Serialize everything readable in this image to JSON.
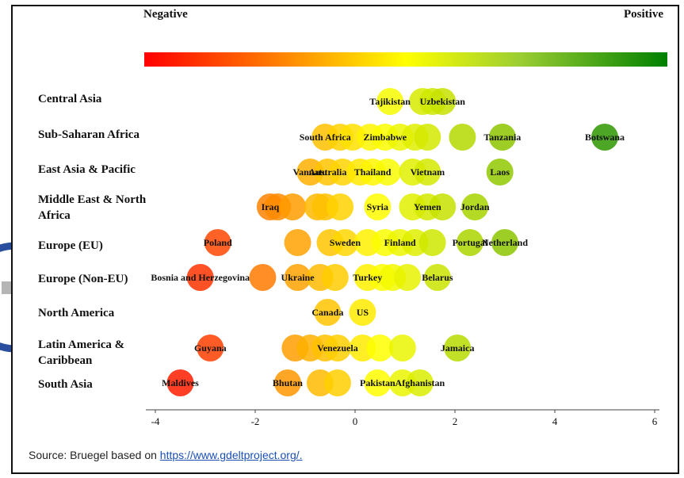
{
  "legend": {
    "negative": "Negative",
    "positive": "Positive"
  },
  "source": {
    "prefix": "Source: Bruegel based on ",
    "link": "https://www.gdeltproject.org/."
  },
  "chart_data": {
    "type": "scatter",
    "xlim": [
      -4,
      6
    ],
    "xticks": [
      "-4",
      "-2",
      "0",
      "2",
      "4",
      "6"
    ],
    "color_scale": {
      "low": "#ff0000",
      "mid": "#ffff00",
      "high": "#008000"
    },
    "regions": [
      {
        "name": "Central Asia",
        "points": [
          {
            "x": 0.7,
            "label": "Tajikistan"
          },
          {
            "x": 1.35
          },
          {
            "x": 1.55
          },
          {
            "x": 1.75,
            "label": "Uzbekistan"
          }
        ]
      },
      {
        "name": "Sub-Saharan Africa",
        "points": [
          {
            "x": -0.6,
            "label": "South Africa"
          },
          {
            "x": -0.3
          },
          {
            "x": -0.05
          },
          {
            "x": 0.3
          },
          {
            "x": 0.6,
            "label": "Zimbabwe"
          },
          {
            "x": 0.9
          },
          {
            "x": 1.2
          },
          {
            "x": 1.45
          },
          {
            "x": 2.15
          },
          {
            "x": 2.95,
            "label": "Tanzania"
          },
          {
            "x": 5.0,
            "label": "Botswana"
          }
        ]
      },
      {
        "name": "East Asia & Pacific",
        "points": [
          {
            "x": -0.9,
            "label": "Vanuatu"
          },
          {
            "x": -0.55,
            "label": "Australia"
          },
          {
            "x": -0.25
          },
          {
            "x": 0.1
          },
          {
            "x": 0.35,
            "label": "Thailand"
          },
          {
            "x": 0.65
          },
          {
            "x": 1.15
          },
          {
            "x": 1.45,
            "label": "Vietnam"
          },
          {
            "x": 2.9,
            "label": "Laos"
          }
        ]
      },
      {
        "name": "Middle East & North Africa",
        "points": [
          {
            "x": -1.7,
            "label": "Iraq"
          },
          {
            "x": -1.55
          },
          {
            "x": -1.25
          },
          {
            "x": -0.75
          },
          {
            "x": -0.6
          },
          {
            "x": -0.3
          },
          {
            "x": 0.45,
            "label": "Syria"
          },
          {
            "x": 1.15
          },
          {
            "x": 1.45,
            "label": "Yemen"
          },
          {
            "x": 1.75
          },
          {
            "x": 2.4,
            "label": "Jordan"
          }
        ]
      },
      {
        "name": "Europe (EU)",
        "points": [
          {
            "x": -2.75,
            "label": "Poland"
          },
          {
            "x": -1.15
          },
          {
            "x": -0.5
          },
          {
            "x": -0.2,
            "label": "Sweden"
          },
          {
            "x": 0.25
          },
          {
            "x": 0.6
          },
          {
            "x": 0.9,
            "label": "Finland"
          },
          {
            "x": 1.2
          },
          {
            "x": 1.55
          },
          {
            "x": 2.3,
            "label": "Portugal"
          },
          {
            "x": 3.0,
            "label": "Netherland"
          }
        ]
      },
      {
        "name": "Europe (Non-EU)",
        "points": [
          {
            "x": -3.1,
            "label": "Bosnia and Herzegovina"
          },
          {
            "x": -1.85
          },
          {
            "x": -1.15,
            "label": "Ukraine"
          },
          {
            "x": -0.7
          },
          {
            "x": -0.4
          },
          {
            "x": 0.25,
            "label": "Turkey"
          },
          {
            "x": 0.55
          },
          {
            "x": 0.75
          },
          {
            "x": 1.05
          },
          {
            "x": 1.65,
            "label": "Belarus"
          }
        ]
      },
      {
        "name": "North America",
        "points": [
          {
            "x": -0.55,
            "label": "Canada"
          },
          {
            "x": 0.15,
            "label": "US"
          }
        ]
      },
      {
        "name": "Latin America & Caribbean",
        "points": [
          {
            "x": -2.9,
            "label": "Guyana"
          },
          {
            "x": -1.2
          },
          {
            "x": -0.9
          },
          {
            "x": -0.6
          },
          {
            "x": -0.35,
            "label": "Venezuela"
          },
          {
            "x": 0.15
          },
          {
            "x": 0.5
          },
          {
            "x": 0.95
          },
          {
            "x": 2.05,
            "label": "Jamaica"
          }
        ]
      },
      {
        "name": "South Asia",
        "points": [
          {
            "x": -3.5,
            "label": "Maldives"
          },
          {
            "x": -1.35,
            "label": "Bhutan"
          },
          {
            "x": -0.7
          },
          {
            "x": -0.35
          },
          {
            "x": 0.45,
            "label": "Pakistan"
          },
          {
            "x": 0.95
          },
          {
            "x": 1.3,
            "label": "Afghanistan"
          }
        ]
      }
    ]
  }
}
